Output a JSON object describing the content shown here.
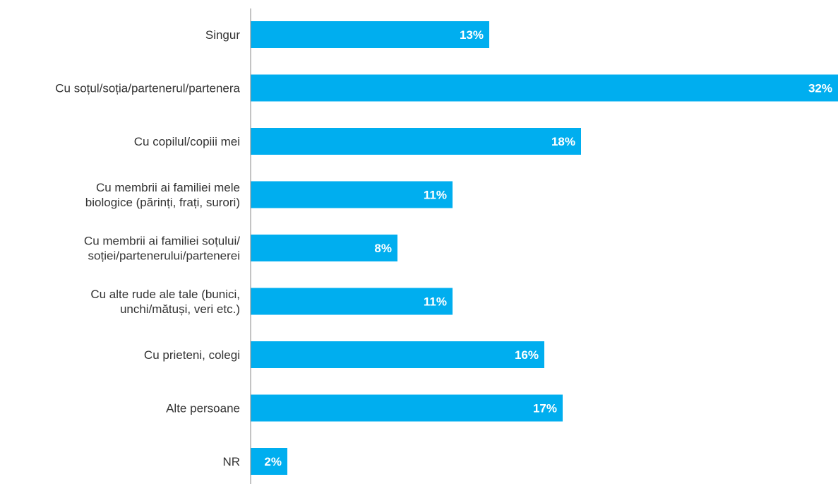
{
  "chart_data": {
    "type": "bar",
    "orientation": "horizontal",
    "categories": [
      [
        "Singur"
      ],
      [
        "Cu soțul/soția/partenerul/partenera"
      ],
      [
        "Cu copilul/copiii mei"
      ],
      [
        "Cu membrii ai familiei mele",
        "biologice (părinți, frați, surori)"
      ],
      [
        "Cu membrii ai familiei soțului/",
        "soției/partenerului/partenerei"
      ],
      [
        "Cu alte rude ale tale (bunici,",
        "unchi/mătuși, veri etc.)"
      ],
      [
        "Cu prieteni, colegi"
      ],
      [
        "Alte persoane"
      ],
      [
        "NR"
      ]
    ],
    "values": [
      13,
      32,
      18,
      11,
      8,
      11,
      16,
      17,
      2
    ],
    "value_labels": [
      "13%",
      "32%",
      "18%",
      "11%",
      "8%",
      "11%",
      "16%",
      "17%",
      "2%"
    ],
    "xlim": [
      0,
      32
    ],
    "grid": false,
    "bar_color": "#00AEEF",
    "label_color": "#ffffff",
    "axis_color": "#888888"
  }
}
